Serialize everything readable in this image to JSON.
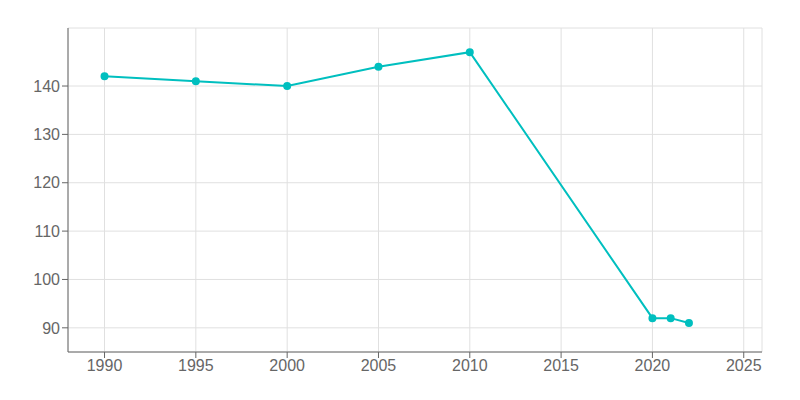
{
  "chart_data": {
    "type": "line",
    "x": [
      1990,
      1995,
      2000,
      2005,
      2010,
      2020,
      2021,
      2022
    ],
    "values": [
      142,
      141,
      140,
      144,
      147,
      92,
      92,
      91
    ],
    "color": "#00bfbf",
    "marker": "circle",
    "xlim": [
      1988,
      2026
    ],
    "xticks": [
      1990,
      1995,
      2000,
      2005,
      2010,
      2015,
      2020,
      2025
    ],
    "ylim": [
      85,
      152
    ],
    "yticks": [
      90,
      100,
      110,
      120,
      130,
      140
    ],
    "grid": true
  }
}
